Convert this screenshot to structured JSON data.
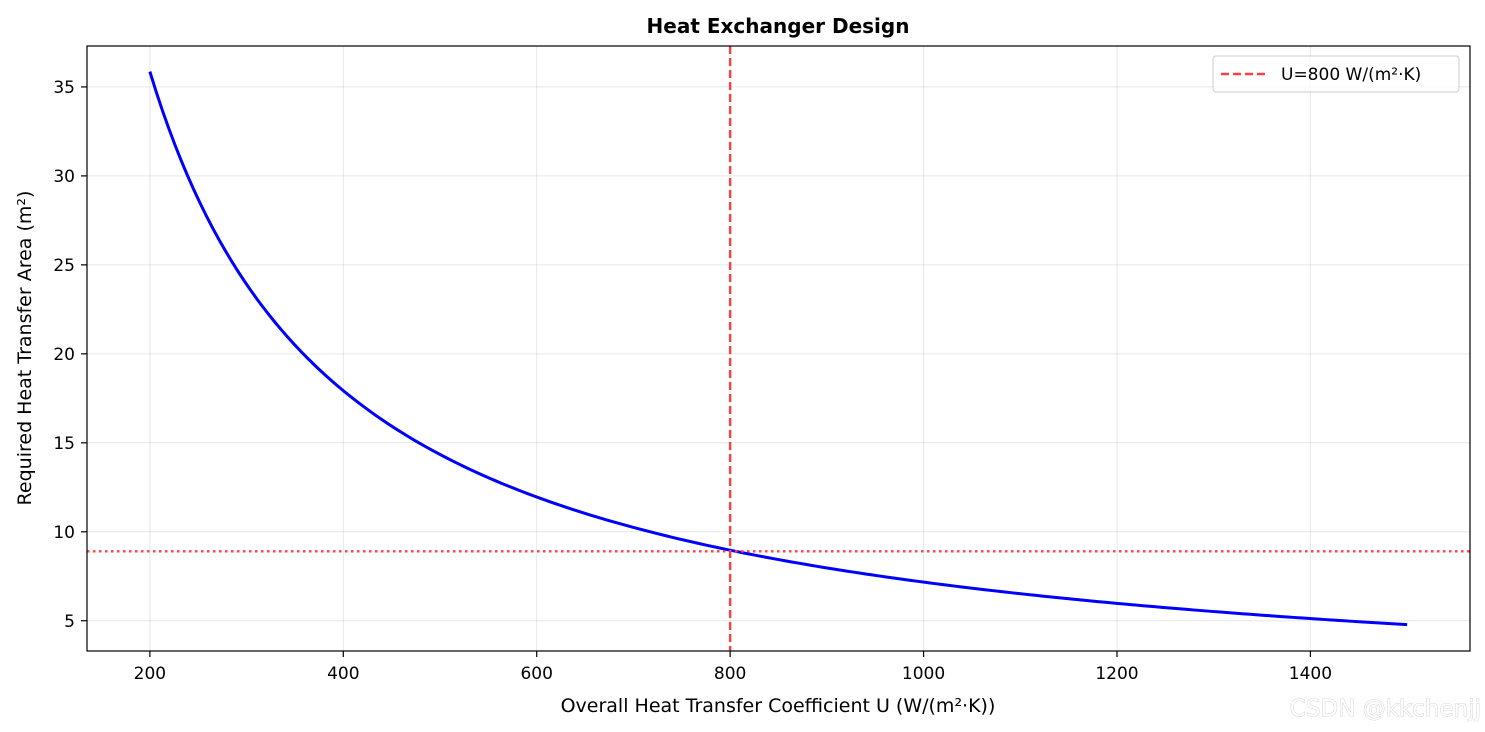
{
  "chart_data": {
    "type": "line",
    "title": "Heat Exchanger Design",
    "xlabel": "Overall Heat Transfer Coefficient U (W/(m²·K))",
    "ylabel": "Required Heat Transfer Area (m²)",
    "xlim": [
      135,
      1565
    ],
    "ylim": [
      3.3,
      37.3
    ],
    "xticks": [
      200,
      400,
      600,
      800,
      1000,
      1200,
      1400
    ],
    "yticks": [
      5,
      10,
      15,
      20,
      25,
      30,
      35
    ],
    "grid": true,
    "legend": {
      "placement": "top-right",
      "entries": [
        {
          "label": "U=800 W/(m²·K)",
          "style": "dashed",
          "color": "#ff4040"
        }
      ]
    },
    "series": [
      {
        "x_range": [
          200,
          1500
        ],
        "area_times_u": 7172,
        "color": "#0000ff"
      }
    ],
    "reference_lines": [
      {
        "orientation": "vertical",
        "value": 800,
        "style": "dashed",
        "color": "#ff4040"
      },
      {
        "orientation": "horizontal",
        "value": 8.9,
        "style": "dotted",
        "color": "#ff4040"
      }
    ]
  },
  "watermark": "CSDN @kkchenjj"
}
